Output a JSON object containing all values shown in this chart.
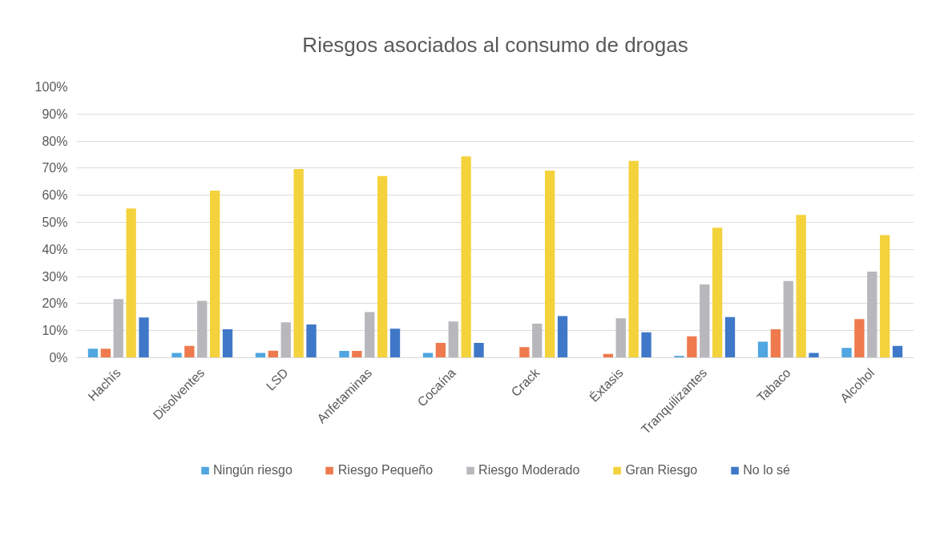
{
  "chart_data": {
    "type": "bar",
    "title": "Riesgos asociados al consumo de drogas",
    "categories": [
      "Hachís",
      "Disolventes",
      "LSD",
      "Anfetaminas",
      "Cocaína",
      "Crack",
      "Éxtasis",
      "Tranquilizantes",
      "Tabaco",
      "Alcohol"
    ],
    "series": [
      {
        "name": "Ningún riesgo",
        "color": "#4fa6e0",
        "values": [
          3.3,
          1.8,
          1.8,
          2.5,
          1.8,
          null,
          null,
          0.7,
          5.9,
          3.6
        ]
      },
      {
        "name": "Riesgo Pequeño",
        "color": "#ee7a4e",
        "values": [
          3.3,
          4.4,
          2.6,
          2.5,
          5.5,
          3.9,
          1.4,
          7.9,
          10.5,
          14.3
        ]
      },
      {
        "name": "Riesgo Moderado",
        "color": "#b8b8bc",
        "values": [
          21.7,
          21.0,
          13.1,
          16.9,
          13.4,
          12.6,
          14.6,
          27.1,
          28.3,
          31.8
        ]
      },
      {
        "name": "Gran Riesgo",
        "color": "#f3d23c",
        "values": [
          55.1,
          61.7,
          69.7,
          67.1,
          74.3,
          69.1,
          72.7,
          48.0,
          52.7,
          45.3
        ]
      },
      {
        "name": "No lo sé",
        "color": "#3f78c8",
        "values": [
          14.9,
          10.5,
          12.3,
          10.7,
          5.5,
          15.4,
          9.4,
          15.0,
          1.8,
          4.4
        ]
      }
    ],
    "ylim": [
      0,
      100
    ],
    "yticks": [
      {
        "value": 0,
        "label": "0%"
      },
      {
        "value": 10,
        "label": "10%"
      },
      {
        "value": 20,
        "label": "20%"
      },
      {
        "value": 30,
        "label": "30%"
      },
      {
        "value": 40,
        "label": "40%"
      },
      {
        "value": 50,
        "label": "50%"
      },
      {
        "value": 60,
        "label": "60%"
      },
      {
        "value": 70,
        "label": "70%"
      },
      {
        "value": 80,
        "label": "80%"
      },
      {
        "value": 90,
        "label": "90%"
      },
      {
        "value": 100,
        "label": "100%"
      }
    ],
    "grid": "y",
    "legend": "bottom"
  }
}
